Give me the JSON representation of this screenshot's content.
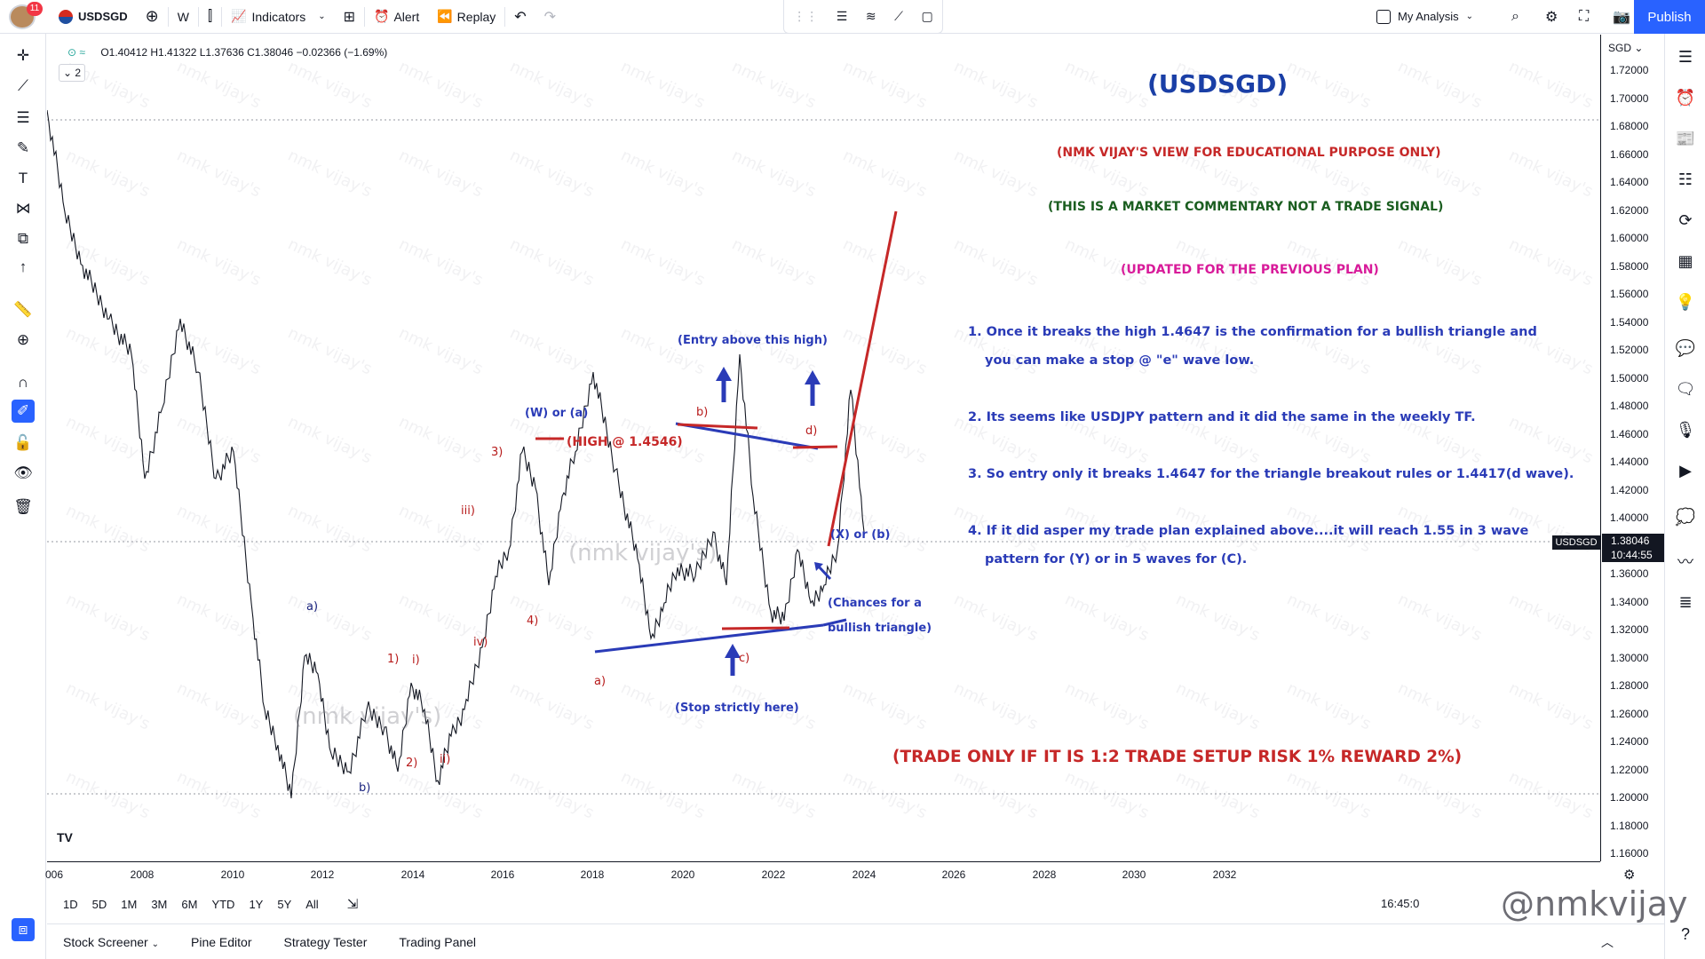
{
  "topbar": {
    "avatar_badge": "11",
    "symbol": "USDSGD",
    "interval": "W",
    "indicators": "Indicators",
    "alert": "Alert",
    "replay": "Replay",
    "layout_name": "My Analysis",
    "publish": "Publish"
  },
  "legend": {
    "ohlc": "O1.40412  H1.41322  L1.37636  C1.38046  −0.02366 (−1.69%)",
    "collapse_count": "2"
  },
  "price_axis": {
    "currency": "SGD",
    "labels": [
      "1.72000",
      "1.70000",
      "1.68000",
      "1.66000",
      "1.64000",
      "1.62000",
      "1.60000",
      "1.58000",
      "1.56000",
      "1.54000",
      "1.52000",
      "1.50000",
      "1.48000",
      "1.46000",
      "1.44000",
      "1.42000",
      "1.40000",
      "1.38000",
      "1.36000",
      "1.34000",
      "1.32000",
      "1.30000",
      "1.28000",
      "1.26000",
      "1.24000",
      "1.22000",
      "1.20000",
      "1.18000",
      "1.16000"
    ],
    "current_symbol": "USDSGD",
    "current_price": "1.38046",
    "countdown": "10:44:55"
  },
  "time_axis": {
    "labels": [
      "006",
      "2008",
      "2010",
      "2012",
      "2014",
      "2016",
      "2018",
      "2020",
      "2022",
      "2024",
      "2026",
      "2028",
      "2030",
      "2032"
    ]
  },
  "range_bar": {
    "ranges": [
      "1D",
      "5D",
      "1M",
      "3M",
      "6M",
      "YTD",
      "1Y",
      "5Y",
      "All"
    ],
    "clock": "16:45:0"
  },
  "bottom_tabs": [
    "Stock Screener",
    "Pine Editor",
    "Strategy Tester",
    "Trading Panel"
  ],
  "colors": {
    "accent": "#2962ff",
    "blue_annotation": "#2a3bb7",
    "red_annotation": "#c62828",
    "green_text": "#1b5e20",
    "magenta_text": "#d81b9a",
    "title_blue": "#1a3fa6"
  },
  "annotations": {
    "title": "(USDSGD)",
    "disclaimer": "(NMK VIJAY'S VIEW FOR EDUCATIONAL PURPOSE ONLY)",
    "commentary": "(THIS IS A MARKET COMMENTARY NOT A TRADE SIGNAL)",
    "updated": "(UPDATED FOR THE PREVIOUS PLAN)",
    "point1_line1": "1. Once it breaks the high 1.4647 is the confirmation for a bullish triangle and",
    "point1_line2": "you can make a stop @ \"e\" wave low.",
    "point2": "2. Its seems like USDJPY pattern and it did the same in the weekly TF.",
    "point3": "3. So entry only it breaks 1.4647 for the triangle breakout rules or 1.4417(d wave).",
    "point4_line1": "4. If it did asper my trade plan explained above....it will reach 1.55 in 3 wave",
    "point4_line2": "pattern for (Y) or in 5 waves for (C).",
    "trade_only": "(TRADE ONLY IF IT IS 1:2 TRADE SETUP RISK 1% REWARD 2%)",
    "entry_above": "(Entry above this high)",
    "stop_here": "(Stop strictly here)",
    "chances_line1": "(Chances for a",
    "chances_line2": "bullish triangle)",
    "high_label": "(HIGH @ 1.4546)",
    "w_or_a": "(W) or (a)",
    "x_or_b": "(X) or (b)",
    "wave_a_left": "a)",
    "wave_b_left": "b)",
    "wave_1": "1)",
    "wave_2": "2)",
    "wave_3": "3)",
    "wave_4": "4)",
    "wave_i": "i)",
    "wave_ii": "ii)",
    "wave_iii": "iii)",
    "wave_iv": "iv)",
    "wave_a_tri": "a)",
    "wave_b_tri": "b)",
    "wave_c_tri": "c)",
    "wave_d_tri": "d)",
    "watermark_center": "(nmk vijay's)",
    "watermark_brand": "@nmkvijay"
  }
}
